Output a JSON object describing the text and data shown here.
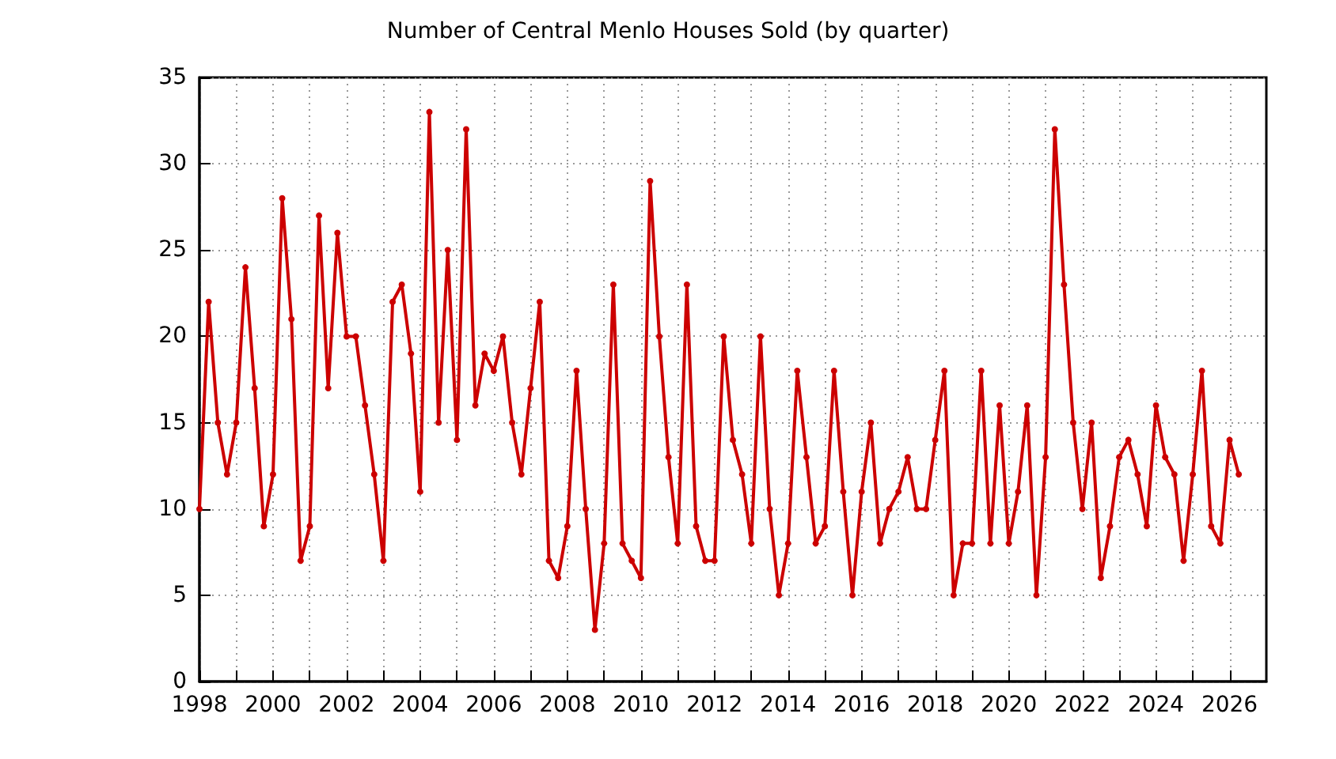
{
  "chart_data": {
    "type": "line",
    "title": "Number of Central Menlo Houses Sold (by quarter)",
    "x": [
      1998,
      1998.25,
      1998.5,
      1998.75,
      1999,
      1999.25,
      1999.5,
      1999.75,
      2000,
      2000.25,
      2000.5,
      2000.75,
      2001,
      2001.25,
      2001.5,
      2001.75,
      2002,
      2002.25,
      2002.5,
      2002.75,
      2003,
      2003.25,
      2003.5,
      2003.75,
      2004,
      2004.25,
      2004.5,
      2004.75,
      2005,
      2005.25,
      2005.5,
      2005.75,
      2006,
      2006.25,
      2006.5,
      2006.75,
      2007,
      2007.25,
      2007.5,
      2007.75,
      2008,
      2008.25,
      2008.5,
      2008.75,
      2009,
      2009.25,
      2009.5,
      2009.75,
      2010,
      2010.25,
      2010.5,
      2010.75,
      2011,
      2011.25,
      2011.5,
      2011.75,
      2012,
      2012.25,
      2012.5,
      2012.75,
      2013,
      2013.25,
      2013.5,
      2013.75,
      2014,
      2014.25,
      2014.5,
      2014.75,
      2015,
      2015.25,
      2015.5,
      2015.75,
      2016,
      2016.25,
      2016.5,
      2016.75,
      2017,
      2017.25,
      2017.5,
      2017.75,
      2018,
      2018.25,
      2018.5,
      2018.75,
      2019,
      2019.25,
      2019.5,
      2019.75,
      2020,
      2020.25,
      2020.5,
      2020.75,
      2021,
      2021.25,
      2021.5,
      2021.75,
      2022,
      2022.25,
      2022.5,
      2022.75,
      2023,
      2023.25,
      2023.5,
      2023.75,
      2024,
      2024.25,
      2024.5,
      2024.75,
      2025,
      2025.25,
      2025.5,
      2025.75,
      2026,
      2026.25
    ],
    "series": [
      {
        "color": "#cc0000",
        "values": [
          10,
          22,
          15,
          12,
          15,
          24,
          17,
          9,
          12,
          28,
          21,
          7,
          9,
          27,
          17,
          26,
          20,
          20,
          16,
          12,
          7,
          22,
          23,
          19,
          11,
          33,
          15,
          25,
          14,
          32,
          16,
          19,
          18,
          20,
          15,
          12,
          17,
          22,
          7,
          6,
          9,
          18,
          10,
          3,
          8,
          23,
          8,
          7,
          6,
          29,
          20,
          13,
          8,
          23,
          9,
          7,
          7,
          20,
          14,
          12,
          8,
          20,
          10,
          5,
          8,
          18,
          13,
          8,
          9,
          18,
          11,
          5,
          11,
          15,
          8,
          10,
          11,
          13,
          10,
          10,
          14,
          18,
          5,
          8,
          8,
          18,
          8,
          16,
          8,
          11,
          16,
          5,
          13,
          32,
          23,
          15,
          10,
          15,
          6,
          9,
          13,
          14,
          12,
          9,
          16,
          13,
          12,
          7,
          12,
          18,
          9,
          8,
          14,
          12
        ]
      }
    ],
    "xlim": [
      1998,
      2027
    ],
    "xticks": [
      1998,
      {
        "value": 1999,
        "label": null
      },
      2000,
      {
        "value": 2001,
        "label": null
      },
      2002,
      {
        "value": 2003,
        "label": null
      },
      2004,
      {
        "value": 2005,
        "label": null
      },
      2006,
      {
        "value": 2007,
        "label": null
      },
      2008,
      {
        "value": 2009,
        "label": null
      },
      2010,
      {
        "value": 2011,
        "label": null
      },
      2012,
      {
        "value": 2013,
        "label": null
      },
      2014,
      {
        "value": 2015,
        "label": null
      },
      2016,
      {
        "value": 2017,
        "label": null
      },
      2018,
      {
        "value": 2019,
        "label": null
      },
      2020,
      {
        "value": 2021,
        "label": null
      },
      2022,
      {
        "value": 2023,
        "label": null
      },
      2024,
      {
        "value": 2025,
        "label": null
      },
      2026
    ],
    "ylim": [
      0,
      35
    ],
    "yticks": [
      0,
      5,
      10,
      15,
      20,
      25,
      30,
      35
    ],
    "grid": true,
    "marker": "circle",
    "line_style": "solid"
  }
}
